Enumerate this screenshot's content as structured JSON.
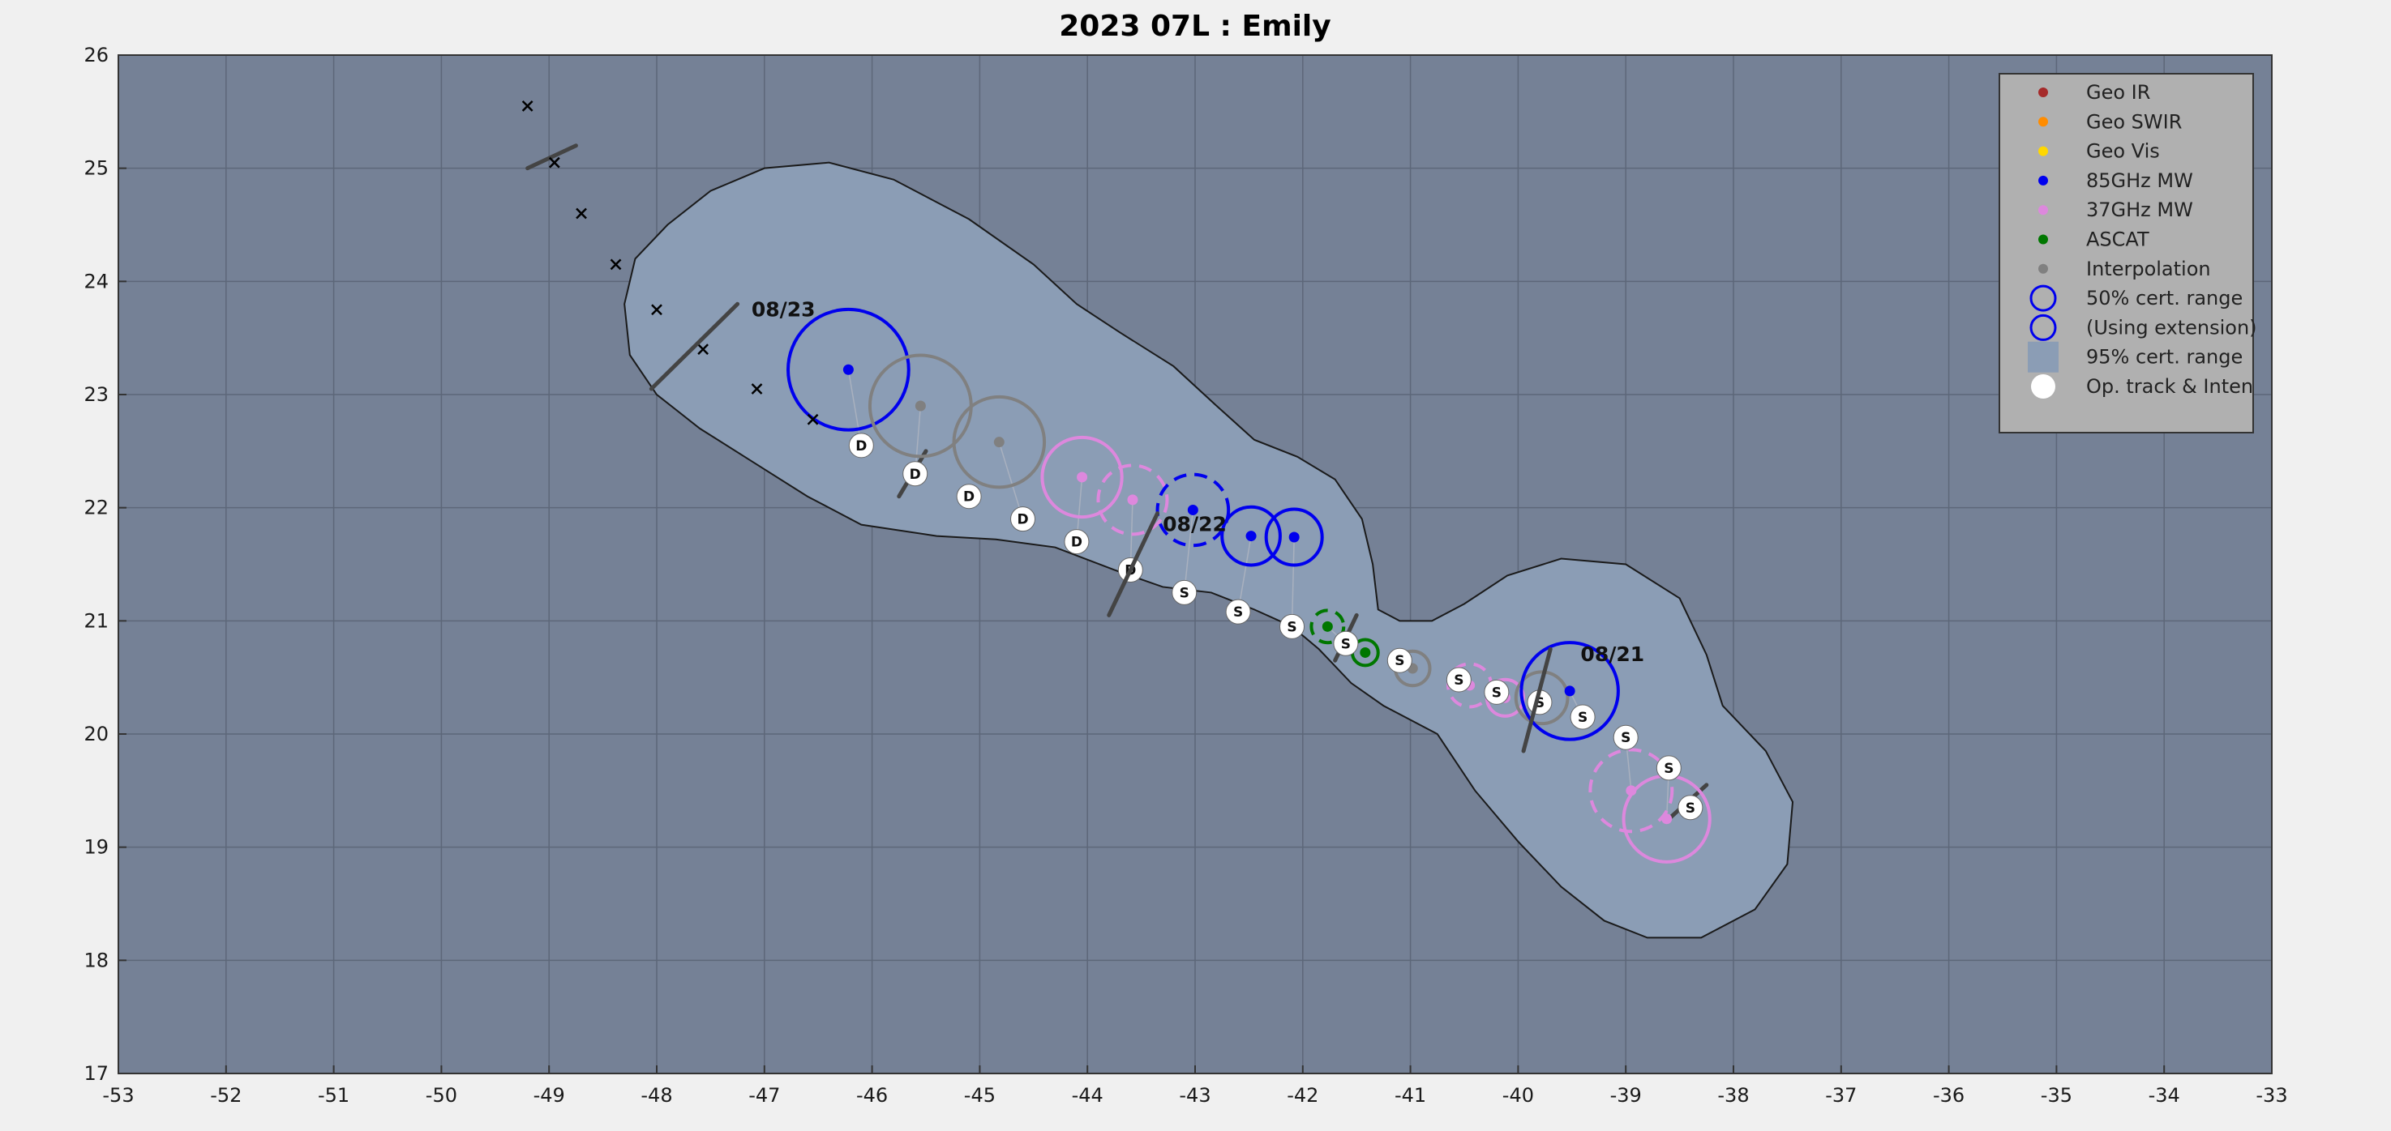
{
  "chart_data": {
    "type": "scatter",
    "title": "2023  07L :  Emily",
    "xlim": [
      -53,
      -33
    ],
    "ylim": [
      17,
      26
    ],
    "xticks": [
      -53,
      -52,
      -51,
      -50,
      -49,
      -48,
      -47,
      -46,
      -45,
      -44,
      -43,
      -42,
      -41,
      -40,
      -39,
      -38,
      -37,
      -36,
      -35,
      -34,
      -33
    ],
    "yticks": [
      17,
      18,
      19,
      20,
      21,
      22,
      23,
      24,
      25,
      26
    ],
    "xtick_labels": [
      "-53",
      "-52",
      "-51",
      "-50",
      "-49",
      "-48",
      "-47",
      "-46",
      "-45",
      "-44",
      "-43",
      "-42",
      "-41",
      "-40",
      "-39",
      "-38",
      "-37",
      "-36",
      "-35",
      "-34",
      "-33"
    ],
    "ytick_labels": [
      "17",
      "18",
      "19",
      "20",
      "21",
      "22",
      "23",
      "24",
      "25",
      "26"
    ],
    "grid": true,
    "legend_position": "top-right",
    "colors": {
      "geo_ir": "#a52a2a",
      "geo_swir": "#ff8c00",
      "geo_vis": "#ffd700",
      "mw85": "#0000ee",
      "mw37": "#dd88dd",
      "ascat": "#007700",
      "interp": "#808080",
      "cert95": "#8b9db5",
      "background": "#758196"
    },
    "legend": [
      {
        "label": "Geo IR",
        "kind": "dot",
        "color": "#a52a2a"
      },
      {
        "label": "Geo SWIR",
        "kind": "dot",
        "color": "#ff8c00"
      },
      {
        "label": "Geo Vis",
        "kind": "dot",
        "color": "#ffd700"
      },
      {
        "label": "85GHz MW",
        "kind": "dot",
        "color": "#0000ee"
      },
      {
        "label": "37GHz MW",
        "kind": "dot",
        "color": "#dd88dd"
      },
      {
        "label": "ASCAT",
        "kind": "dot",
        "color": "#007700"
      },
      {
        "label": "Interpolation",
        "kind": "dot",
        "color": "#808080"
      },
      {
        "label": "50% cert. range",
        "kind": "circle",
        "color": "#0000ee"
      },
      {
        "label": "(Using extension)",
        "kind": "circle",
        "color": "#0000ee"
      },
      {
        "label": "95% cert. range",
        "kind": "square",
        "color": "#8b9db5"
      },
      {
        "label": "Op. track & Inten",
        "kind": "white",
        "color": "#ffffff"
      }
    ],
    "certainty_region_95": [
      [
        -48.3,
        23.8
      ],
      [
        -48.2,
        24.2
      ],
      [
        -47.9,
        24.5
      ],
      [
        -47.5,
        24.8
      ],
      [
        -47.0,
        25.0
      ],
      [
        -46.4,
        25.05
      ],
      [
        -45.8,
        24.9
      ],
      [
        -45.1,
        24.55
      ],
      [
        -44.5,
        24.15
      ],
      [
        -44.1,
        23.8
      ],
      [
        -43.7,
        23.55
      ],
      [
        -43.2,
        23.25
      ],
      [
        -42.8,
        22.9
      ],
      [
        -42.45,
        22.6
      ],
      [
        -42.05,
        22.45
      ],
      [
        -41.7,
        22.25
      ],
      [
        -41.45,
        21.9
      ],
      [
        -41.35,
        21.5
      ],
      [
        -41.3,
        21.1
      ],
      [
        -41.1,
        21.0
      ],
      [
        -40.8,
        21.0
      ],
      [
        -40.5,
        21.15
      ],
      [
        -40.1,
        21.4
      ],
      [
        -39.6,
        21.55
      ],
      [
        -39.0,
        21.5
      ],
      [
        -38.5,
        21.2
      ],
      [
        -38.25,
        20.7
      ],
      [
        -38.1,
        20.25
      ],
      [
        -37.7,
        19.85
      ],
      [
        -37.45,
        19.4
      ],
      [
        -37.5,
        18.85
      ],
      [
        -37.8,
        18.45
      ],
      [
        -38.3,
        18.2
      ],
      [
        -38.8,
        18.2
      ],
      [
        -39.2,
        18.35
      ],
      [
        -39.6,
        18.65
      ],
      [
        -40.0,
        19.05
      ],
      [
        -40.4,
        19.5
      ],
      [
        -40.75,
        20.0
      ],
      [
        -41.25,
        20.25
      ],
      [
        -41.55,
        20.45
      ],
      [
        -41.85,
        20.75
      ],
      [
        -42.1,
        20.95
      ],
      [
        -42.45,
        21.1
      ],
      [
        -42.85,
        21.25
      ],
      [
        -43.3,
        21.3
      ],
      [
        -43.75,
        21.45
      ],
      [
        -44.3,
        21.65
      ],
      [
        -44.85,
        21.72
      ],
      [
        -45.4,
        21.75
      ],
      [
        -46.1,
        21.85
      ],
      [
        -46.6,
        22.1
      ],
      [
        -47.1,
        22.4
      ],
      [
        -47.6,
        22.7
      ],
      [
        -48.0,
        23.0
      ],
      [
        -48.25,
        23.35
      ]
    ],
    "fixes": [
      {
        "type": "mw85",
        "x": -46.22,
        "y": 23.22,
        "r": 0.56,
        "dashed": false,
        "ox": -46.1,
        "oy": 22.55
      },
      {
        "type": "interp",
        "x": -45.55,
        "y": 22.9,
        "r": 0.47,
        "dashed": false,
        "ox": -45.6,
        "oy": 22.3
      },
      {
        "type": "interp",
        "x": -44.82,
        "y": 22.58,
        "r": 0.42,
        "dashed": false,
        "ox": -44.6,
        "oy": 21.9
      },
      {
        "type": "mw37",
        "x": -44.05,
        "y": 22.27,
        "r": 0.37,
        "dashed": false,
        "ox": -44.1,
        "oy": 21.7
      },
      {
        "type": "mw37",
        "x": -43.58,
        "y": 22.07,
        "r": 0.32,
        "dashed": true,
        "ox": -43.6,
        "oy": 21.45
      },
      {
        "type": "mw85",
        "x": -43.02,
        "y": 21.98,
        "r": 0.33,
        "dashed": true,
        "ox": -43.1,
        "oy": 21.25
      },
      {
        "type": "mw85",
        "x": -42.48,
        "y": 21.75,
        "r": 0.27,
        "dashed": false,
        "ox": -42.6,
        "oy": 21.08
      },
      {
        "type": "mw85",
        "x": -42.08,
        "y": 21.74,
        "r": 0.26,
        "dashed": false,
        "ox": -42.1,
        "oy": 20.95
      },
      {
        "type": "ascat",
        "x": -41.77,
        "y": 20.95,
        "r": 0.15,
        "dashed": true,
        "ox": -41.6,
        "oy": 20.8
      },
      {
        "type": "ascat",
        "x": -41.42,
        "y": 20.72,
        "r": 0.12,
        "dashed": false,
        "ox": -41.4,
        "oy": 20.72
      },
      {
        "type": "interp",
        "x": -40.98,
        "y": 20.58,
        "r": 0.16,
        "dashed": false,
        "ox": -41.1,
        "oy": 20.65
      },
      {
        "type": "mw37",
        "x": -40.45,
        "y": 20.43,
        "r": 0.2,
        "dashed": true,
        "ox": -40.55,
        "oy": 20.48
      },
      {
        "type": "mw37",
        "x": -40.12,
        "y": 20.32,
        "r": 0.17,
        "dashed": false,
        "ox": -40.2,
        "oy": 20.37
      },
      {
        "type": "interp",
        "x": -39.78,
        "y": 20.32,
        "r": 0.24,
        "dashed": false,
        "ox": -39.8,
        "oy": 20.28
      },
      {
        "type": "mw85",
        "x": -39.52,
        "y": 20.38,
        "r": 0.45,
        "dashed": false,
        "ox": -39.4,
        "oy": 20.15
      },
      {
        "type": "mw37",
        "x": -38.95,
        "y": 19.5,
        "r": 0.38,
        "dashed": true,
        "ox": -39.0,
        "oy": 19.97
      },
      {
        "type": "mw37",
        "x": -38.62,
        "y": 19.25,
        "r": 0.4,
        "dashed": false,
        "ox": -38.6,
        "oy": 19.7
      }
    ],
    "operational_track": [
      {
        "x": -46.1,
        "y": 22.55,
        "label": "D"
      },
      {
        "x": -45.6,
        "y": 22.3,
        "label": "D"
      },
      {
        "x": -45.1,
        "y": 22.1,
        "label": "D"
      },
      {
        "x": -44.6,
        "y": 21.9,
        "label": "D"
      },
      {
        "x": -44.1,
        "y": 21.7,
        "label": "D"
      },
      {
        "x": -43.6,
        "y": 21.45,
        "label": "D"
      },
      {
        "x": -43.1,
        "y": 21.25,
        "label": "S"
      },
      {
        "x": -42.6,
        "y": 21.08,
        "label": "S"
      },
      {
        "x": -42.1,
        "y": 20.95,
        "label": "S"
      },
      {
        "x": -41.6,
        "y": 20.8,
        "label": "S"
      },
      {
        "x": -41.1,
        "y": 20.65,
        "label": "S"
      },
      {
        "x": -40.55,
        "y": 20.48,
        "label": "S"
      },
      {
        "x": -40.2,
        "y": 20.37,
        "label": "S"
      },
      {
        "x": -39.8,
        "y": 20.28,
        "label": "S"
      },
      {
        "x": -39.4,
        "y": 20.15,
        "label": "S"
      },
      {
        "x": -39.0,
        "y": 19.97,
        "label": "S"
      },
      {
        "x": -38.6,
        "y": 19.7,
        "label": "S"
      },
      {
        "x": -38.4,
        "y": 19.35,
        "label": "S"
      }
    ],
    "forecast_track": [
      {
        "x": -49.2,
        "y": 25.55
      },
      {
        "x": -48.95,
        "y": 25.05
      },
      {
        "x": -48.7,
        "y": 24.6
      },
      {
        "x": -48.38,
        "y": 24.15
      },
      {
        "x": -48.0,
        "y": 23.75
      },
      {
        "x": -47.57,
        "y": 23.4
      },
      {
        "x": -47.07,
        "y": 23.05
      },
      {
        "x": -46.55,
        "y": 22.78
      }
    ],
    "date_markers": [
      {
        "label": "08/23",
        "x1": -48.05,
        "y1": 23.05,
        "x2": -47.25,
        "y2": 23.8,
        "lx": -47.12,
        "ly": 23.75
      },
      {
        "label": "08/22",
        "x1": -43.8,
        "y1": 21.05,
        "x2": -43.35,
        "y2": 21.95,
        "lx": -43.3,
        "ly": 21.85
      },
      {
        "label": "08/21",
        "x1": -39.95,
        "y1": 19.85,
        "x2": -39.7,
        "y2": 20.75,
        "lx": -39.42,
        "ly": 20.7
      }
    ],
    "extra_segments": [
      {
        "x1": -49.2,
        "y1": 25.0,
        "x2": -48.75,
        "y2": 25.2
      },
      {
        "x1": -45.75,
        "y1": 22.1,
        "x2": -45.5,
        "y2": 22.5
      },
      {
        "x1": -41.7,
        "y1": 20.65,
        "x2": -41.5,
        "y2": 21.05
      },
      {
        "x1": -38.6,
        "y1": 19.25,
        "x2": -38.25,
        "y2": 19.55
      }
    ]
  }
}
